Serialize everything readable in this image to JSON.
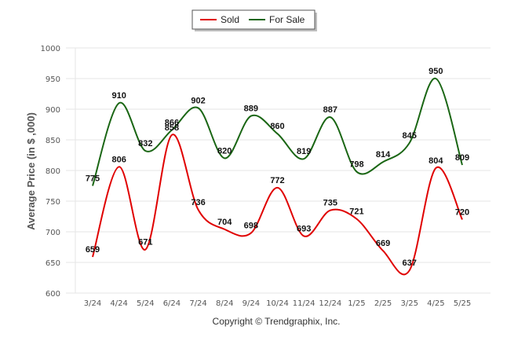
{
  "chart_data": {
    "type": "line",
    "categories": [
      "3/24",
      "4/24",
      "5/24",
      "6/24",
      "7/24",
      "8/24",
      "9/24",
      "10/24",
      "11/24",
      "12/24",
      "1/25",
      "2/25",
      "3/25",
      "4/25",
      "5/25"
    ],
    "series": [
      {
        "name": "Sold",
        "color": "#e00000",
        "values": [
          659,
          806,
          671,
          858,
          736,
          704,
          698,
          772,
          693,
          735,
          721,
          669,
          637,
          804,
          720
        ]
      },
      {
        "name": "For Sale",
        "color": "#1a6614",
        "values": [
          775,
          910,
          832,
          866,
          902,
          820,
          889,
          860,
          819,
          887,
          798,
          814,
          845,
          950,
          809
        ]
      }
    ],
    "ylabel": "Average Price (in $ ,000)",
    "ylim": [
      600,
      1000
    ],
    "yticks": [
      600,
      650,
      700,
      750,
      800,
      850,
      900,
      950,
      1000
    ],
    "legend": "top-center",
    "grid": true,
    "smooth": true
  },
  "copyright": "Copyright © Trendgraphix, Inc."
}
